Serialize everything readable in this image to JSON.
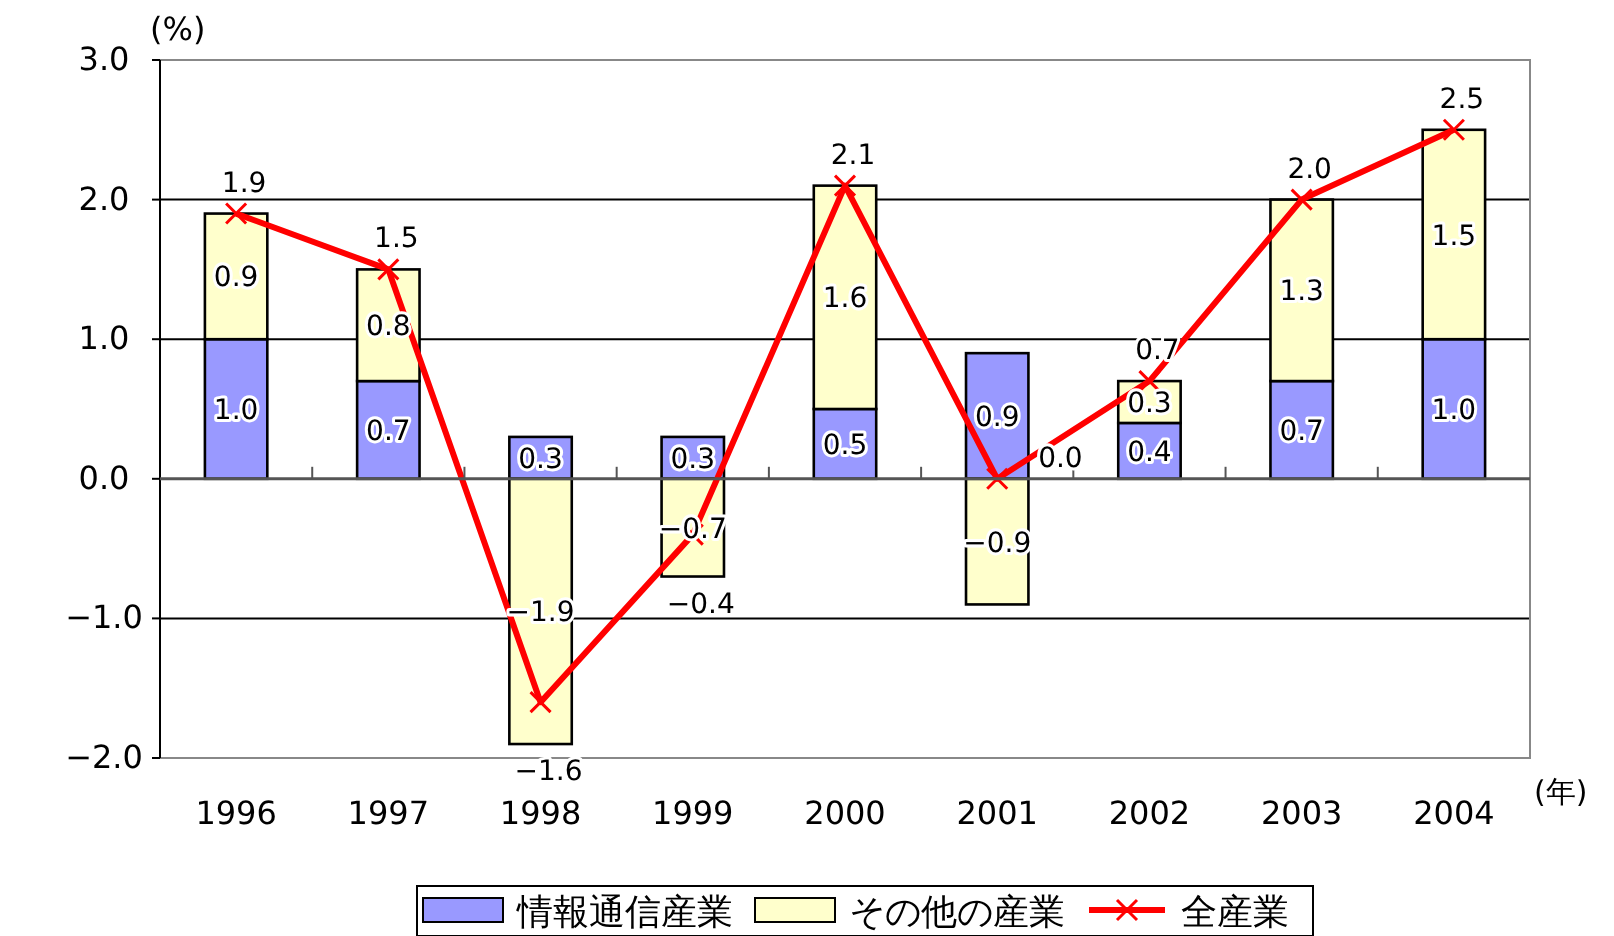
{
  "chart_data": {
    "type": "bar",
    "stacked": true,
    "ylabel": "(%)",
    "xlabel": "(年)",
    "categories": [
      "1996",
      "1997",
      "1998",
      "1999",
      "2000",
      "2001",
      "2002",
      "2003",
      "2004"
    ],
    "series": [
      {
        "name": "情報通信産業",
        "color": "#9999ff",
        "values": [
          1.0,
          0.7,
          0.3,
          0.3,
          0.5,
          0.9,
          0.4,
          0.7,
          1.0
        ],
        "value_labels": [
          "1.0",
          "0.7",
          "0.3",
          "0.3",
          "0.5",
          "0.9",
          "0.4",
          "0.7",
          "1.0"
        ]
      },
      {
        "name": "その他の産業",
        "color": "#ffffcc",
        "values": [
          0.9,
          0.8,
          -1.9,
          -0.7,
          1.6,
          -0.9,
          0.3,
          1.3,
          1.5
        ],
        "value_labels": [
          "0.9",
          "0.8",
          "−1.9",
          "−0.7",
          "1.6",
          "−0.9",
          "0.3",
          "1.3",
          "1.5"
        ]
      },
      {
        "name": "全産業",
        "type": "line",
        "color": "#ff0000",
        "marker": "cross",
        "values": [
          1.9,
          1.5,
          -1.6,
          -0.4,
          2.1,
          0.0,
          0.7,
          2.0,
          2.5
        ],
        "value_labels": [
          "1.9",
          "1.5",
          "−1.6",
          "−0.4",
          "2.1",
          "0.0",
          "0.7",
          "2.0",
          "2.5"
        ]
      }
    ],
    "ylim": [
      -2,
      3
    ],
    "yticks": [
      {
        "value": -2,
        "label": "−2.0"
      },
      {
        "value": -1,
        "label": "−1.0"
      },
      {
        "value": 0,
        "label": "0.0"
      },
      {
        "value": 1,
        "label": "1.0"
      },
      {
        "value": 2,
        "label": "2.0"
      },
      {
        "value": 3,
        "label": "3.0"
      }
    ],
    "grid": "y",
    "legend": "bottom"
  }
}
